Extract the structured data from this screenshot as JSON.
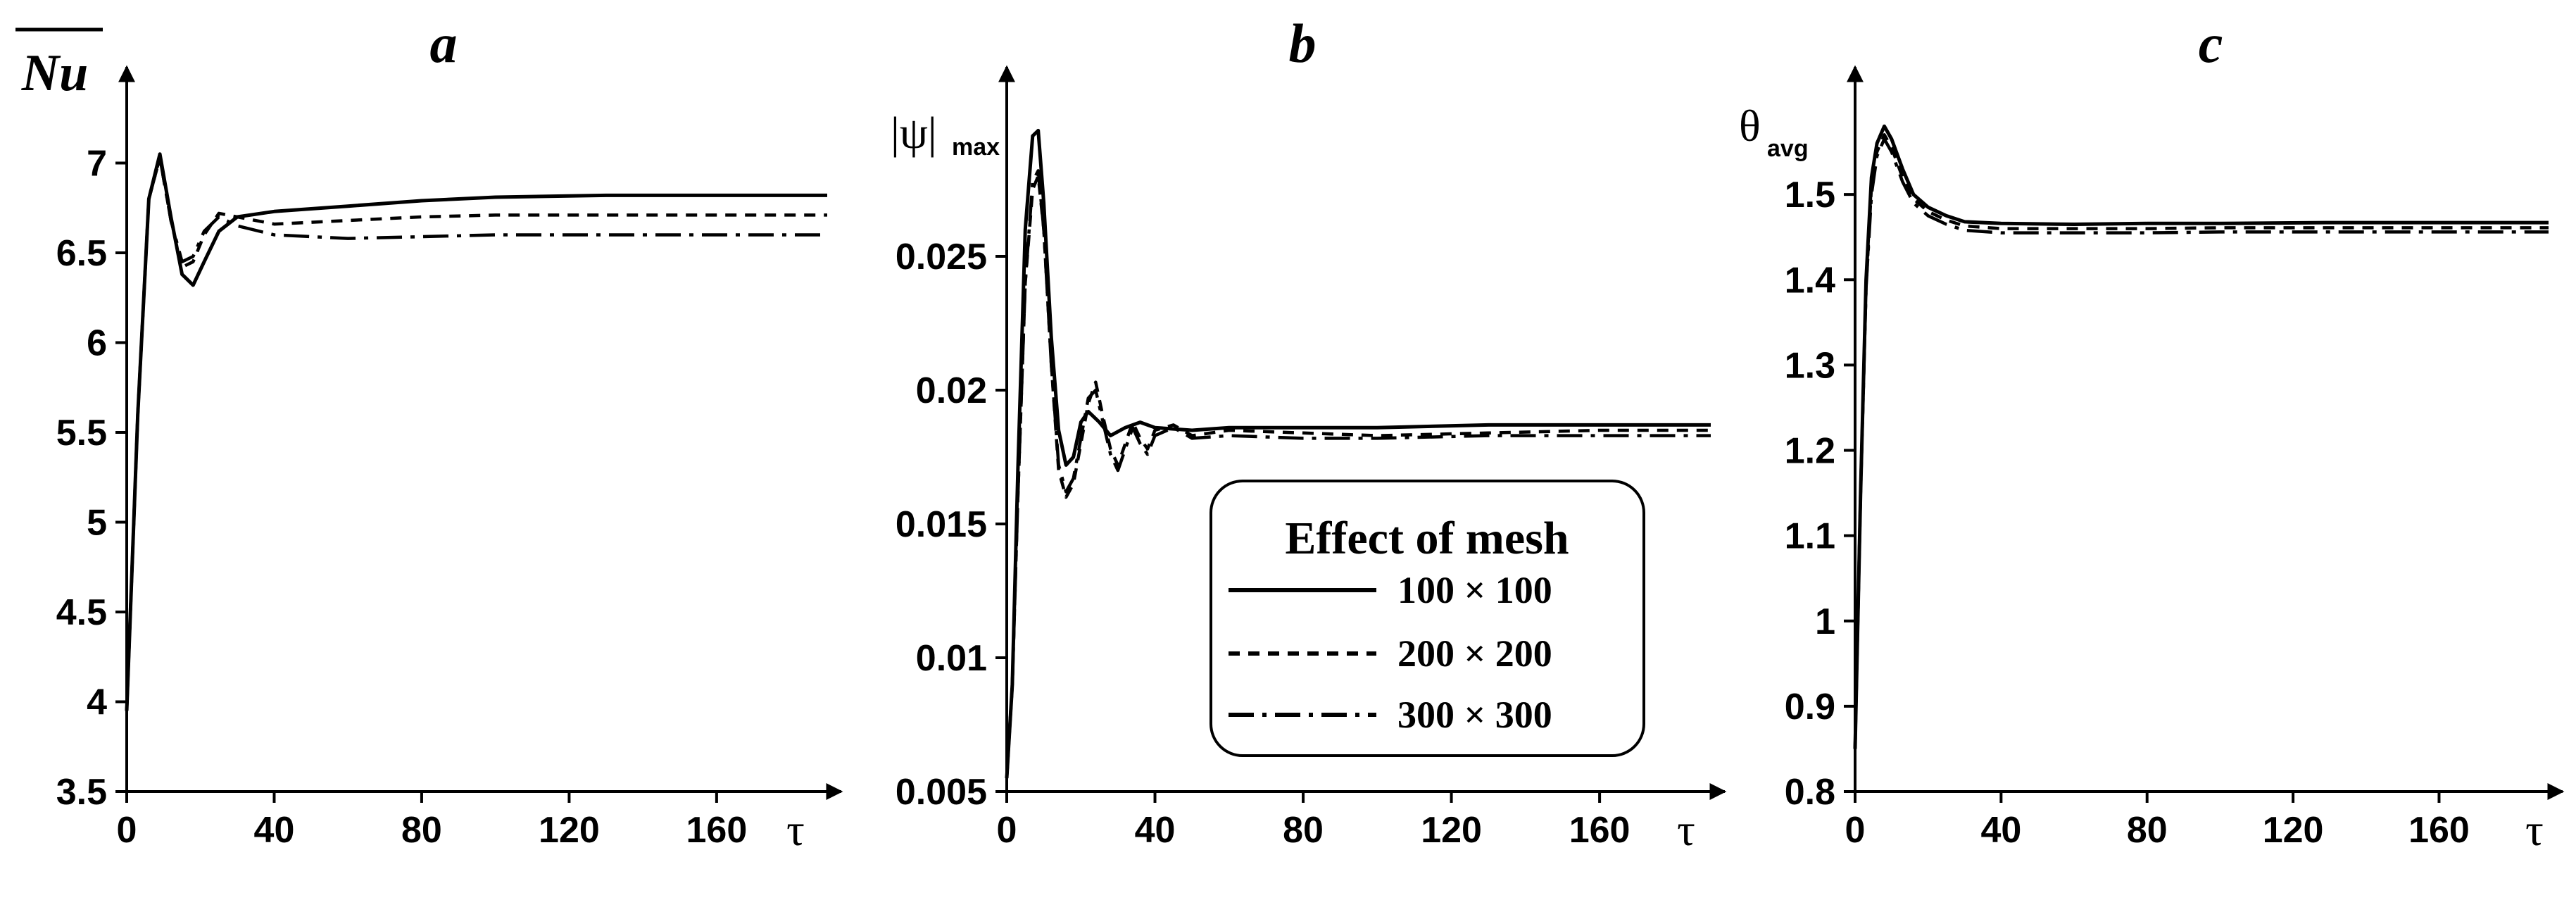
{
  "chart_data": [
    {
      "type": "line",
      "panel": "a",
      "ylabel": "Nu",
      "xlabel": "τ",
      "xlim": [
        0,
        190
      ],
      "ylim": [
        3.5,
        7.3
      ],
      "xticks": [
        0,
        40,
        80,
        120,
        160
      ],
      "xtick_labels": [
        "0",
        "40",
        "80",
        "120",
        "160"
      ],
      "yticks": [
        3.5,
        4,
        4.5,
        5,
        5.5,
        6,
        6.5,
        7
      ],
      "ytick_labels": [
        "3.5",
        "4",
        "4.5",
        "5",
        "5.5",
        "6",
        "6.5",
        "7"
      ],
      "series": [
        {
          "name": "100 × 100",
          "style": "solid",
          "x": [
            0,
            3,
            6,
            9,
            12,
            15,
            18,
            21,
            25,
            30,
            40,
            60,
            80,
            100,
            130,
            160,
            190
          ],
          "y": [
            3.95,
            5.6,
            6.8,
            7.05,
            6.7,
            6.38,
            6.32,
            6.45,
            6.62,
            6.7,
            6.73,
            6.76,
            6.79,
            6.81,
            6.82,
            6.82,
            6.82
          ]
        },
        {
          "name": "200 × 200",
          "style": "dash",
          "x": [
            0,
            3,
            6,
            9,
            12,
            15,
            18,
            21,
            25,
            30,
            40,
            60,
            80,
            100,
            130,
            160,
            190
          ],
          "y": [
            3.95,
            5.6,
            6.8,
            7.03,
            6.68,
            6.42,
            6.45,
            6.6,
            6.72,
            6.7,
            6.66,
            6.68,
            6.7,
            6.71,
            6.71,
            6.71,
            6.71
          ]
        },
        {
          "name": "300 × 300",
          "style": "dashdot",
          "x": [
            0,
            3,
            6,
            9,
            12,
            15,
            18,
            21,
            25,
            30,
            40,
            60,
            80,
            100,
            130,
            160,
            190
          ],
          "y": [
            3.95,
            5.6,
            6.8,
            7.03,
            6.68,
            6.45,
            6.48,
            6.62,
            6.7,
            6.65,
            6.6,
            6.58,
            6.59,
            6.6,
            6.6,
            6.6,
            6.6
          ]
        }
      ]
    },
    {
      "type": "line",
      "panel": "b",
      "ylabel": "|ψ|",
      "ylabel_sub": "max",
      "xlabel": "τ",
      "xlim": [
        0,
        190
      ],
      "ylim": [
        0.005,
        0.0305
      ],
      "xticks": [
        0,
        40,
        80,
        120,
        160
      ],
      "xtick_labels": [
        "0",
        "40",
        "80",
        "120",
        "160"
      ],
      "yticks": [
        0.005,
        0.01,
        0.015,
        0.02,
        0.025
      ],
      "ytick_labels": [
        "0.005",
        "0.01",
        "0.015",
        "0.02",
        "0.025"
      ],
      "series": [
        {
          "name": "100 × 100",
          "style": "solid",
          "x": [
            0,
            1.5,
            3,
            5,
            7,
            8.5,
            10,
            12,
            14,
            16,
            18,
            20,
            22,
            25,
            28,
            32,
            36,
            40,
            50,
            60,
            80,
            100,
            130,
            160,
            190
          ],
          "y": [
            0.0055,
            0.009,
            0.017,
            0.026,
            0.0295,
            0.0297,
            0.027,
            0.022,
            0.0185,
            0.0172,
            0.0175,
            0.0188,
            0.0192,
            0.0188,
            0.0183,
            0.0186,
            0.0188,
            0.0186,
            0.0185,
            0.0186,
            0.0186,
            0.0186,
            0.0187,
            0.0187,
            0.0187
          ]
        },
        {
          "name": "200 × 200",
          "style": "dash",
          "x": [
            0,
            1.5,
            3,
            5,
            7,
            8.5,
            10,
            12,
            14,
            16,
            18,
            20,
            22,
            24,
            26,
            28,
            30,
            32,
            34,
            36,
            38,
            40,
            45,
            50,
            60,
            80,
            100,
            130,
            160,
            190
          ],
          "y": [
            0.0055,
            0.009,
            0.016,
            0.024,
            0.0275,
            0.028,
            0.026,
            0.021,
            0.017,
            0.016,
            0.0165,
            0.018,
            0.0195,
            0.0203,
            0.019,
            0.0178,
            0.0172,
            0.018,
            0.0188,
            0.0182,
            0.0178,
            0.0185,
            0.0187,
            0.0183,
            0.0185,
            0.0184,
            0.0183,
            0.0184,
            0.0185,
            0.0185
          ]
        },
        {
          "name": "300 × 300",
          "style": "dashdot",
          "x": [
            0,
            1.5,
            3,
            5,
            7,
            8.5,
            10,
            12,
            14,
            16,
            18,
            20,
            22,
            24,
            26,
            28,
            30,
            32,
            34,
            36,
            38,
            40,
            45,
            50,
            60,
            80,
            100,
            130,
            160,
            190
          ],
          "y": [
            0.0055,
            0.009,
            0.016,
            0.024,
            0.0278,
            0.0282,
            0.026,
            0.021,
            0.0172,
            0.0162,
            0.0167,
            0.0182,
            0.0197,
            0.02,
            0.0188,
            0.0176,
            0.017,
            0.0178,
            0.0186,
            0.018,
            0.0176,
            0.0183,
            0.0186,
            0.0182,
            0.0183,
            0.0182,
            0.0182,
            0.0183,
            0.0183,
            0.0183
          ]
        }
      ]
    },
    {
      "type": "line",
      "panel": "c",
      "ylabel": "θ",
      "ylabel_sub": "avg",
      "xlabel": "τ",
      "xlim": [
        0,
        190
      ],
      "ylim": [
        0.8,
        1.6
      ],
      "xticks": [
        0,
        40,
        80,
        120,
        160
      ],
      "xtick_labels": [
        "0",
        "40",
        "80",
        "120",
        "160"
      ],
      "yticks": [
        0.8,
        0.9,
        1,
        1.1,
        1.2,
        1.3,
        1.4,
        1.5
      ],
      "ytick_labels": [
        "0.8",
        "0.9",
        "1",
        "1.1",
        "1.2",
        "1.3",
        "1.4",
        "1.5"
      ],
      "series": [
        {
          "name": "100 × 100",
          "style": "solid",
          "x": [
            0,
            1.5,
            3,
            4.5,
            6,
            8,
            10,
            13,
            16,
            20,
            25,
            30,
            40,
            60,
            80,
            100,
            130,
            160,
            190
          ],
          "y": [
            0.85,
            1.15,
            1.4,
            1.52,
            1.56,
            1.58,
            1.565,
            1.53,
            1.5,
            1.485,
            1.475,
            1.468,
            1.466,
            1.465,
            1.466,
            1.466,
            1.467,
            1.467,
            1.467
          ]
        },
        {
          "name": "200 × 200",
          "style": "dash",
          "x": [
            0,
            1.5,
            3,
            4.5,
            6,
            8,
            10,
            13,
            16,
            20,
            25,
            30,
            40,
            60,
            80,
            100,
            130,
            160,
            190
          ],
          "y": [
            0.85,
            1.15,
            1.39,
            1.51,
            1.55,
            1.57,
            1.555,
            1.52,
            1.495,
            1.48,
            1.47,
            1.463,
            1.46,
            1.46,
            1.46,
            1.461,
            1.461,
            1.461,
            1.461
          ]
        },
        {
          "name": "300 × 300",
          "style": "dashdot",
          "x": [
            0,
            1.5,
            3,
            4.5,
            6,
            8,
            10,
            13,
            16,
            20,
            25,
            30,
            40,
            60,
            80,
            100,
            130,
            160,
            190
          ],
          "y": [
            0.85,
            1.15,
            1.39,
            1.5,
            1.545,
            1.565,
            1.55,
            1.515,
            1.49,
            1.475,
            1.465,
            1.458,
            1.455,
            1.455,
            1.455,
            1.456,
            1.456,
            1.456,
            1.456
          ]
        }
      ]
    }
  ],
  "legend": {
    "title": "Effect of mesh",
    "entries": [
      "100 × 100",
      "200 × 200",
      "300 × 300"
    ]
  }
}
